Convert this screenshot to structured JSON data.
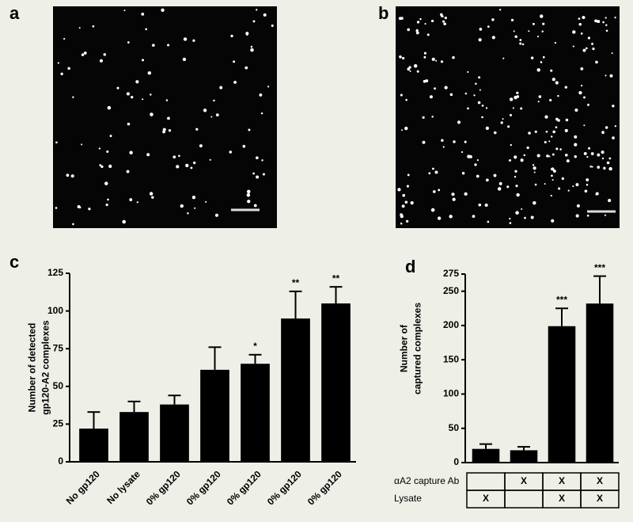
{
  "images": [
    {
      "panel_label": "a"
    },
    {
      "panel_label": "b"
    }
  ],
  "chart_data": [
    {
      "type": "bar",
      "panel_label": "c",
      "ylabel": [
        "Number of detected",
        "gp120-A2 complexes"
      ],
      "categories": [
        "No gp120",
        "No lysate",
        "0% gp120",
        "0% gp120",
        "0% gp120",
        "0% gp120",
        "0% gp120"
      ],
      "values": [
        22,
        33,
        38,
        61,
        65,
        95,
        105
      ],
      "errors": [
        11,
        7,
        6,
        15,
        6,
        18,
        11
      ],
      "value_annotations": [
        null,
        null,
        null,
        null,
        "*",
        "**",
        "**"
      ],
      "color": "#000000",
      "ylim": [
        0,
        125
      ],
      "yticks": [
        0,
        25,
        50,
        75,
        100,
        125
      ]
    },
    {
      "type": "bar",
      "panel_label": "d",
      "ylabel": [
        "Number of",
        "captured complexes"
      ],
      "values": [
        20,
        18,
        199,
        232
      ],
      "errors": [
        7,
        5,
        26,
        40
      ],
      "value_annotations": [
        null,
        null,
        "***",
        "***"
      ],
      "color": "#000000",
      "ylim": [
        0,
        275
      ],
      "yticks": [
        0,
        50,
        100,
        150,
        200,
        250,
        275
      ],
      "table": {
        "rows": [
          {
            "label": "αA2 capture Ab",
            "cells": [
              null,
              "X",
              "X",
              "X"
            ]
          },
          {
            "label": "Lysate",
            "cells": [
              "X",
              null,
              "X",
              "X"
            ]
          }
        ]
      }
    }
  ]
}
